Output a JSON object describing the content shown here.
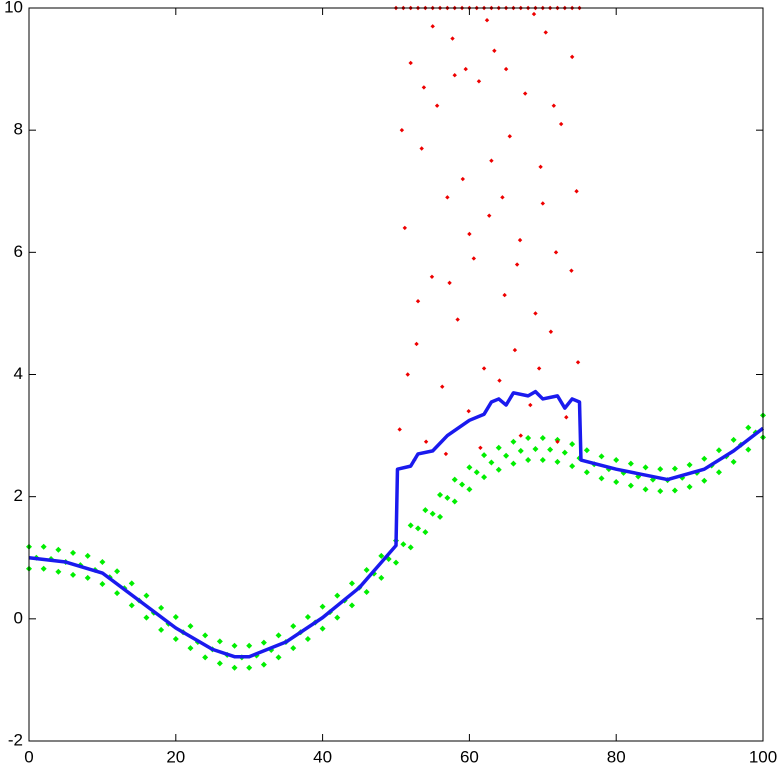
{
  "chart_data": {
    "type": "scatter",
    "xlim": [
      0,
      100
    ],
    "ylim": [
      -2,
      10
    ],
    "xticks": [
      0,
      20,
      40,
      60,
      80,
      100
    ],
    "yticks": [
      -2,
      0,
      2,
      4,
      6,
      8,
      10
    ],
    "grid": false,
    "series": [
      {
        "type": "scatter",
        "color": "#00ee00",
        "x": [
          0,
          0,
          2,
          2,
          4,
          4,
          6,
          6,
          8,
          8,
          10,
          10,
          12,
          12,
          14,
          14,
          16,
          16,
          18,
          18,
          20,
          20,
          22,
          22,
          24,
          24,
          26,
          26,
          28,
          28,
          30,
          30,
          32,
          32,
          34,
          34,
          36,
          36,
          38,
          38,
          40,
          40,
          42,
          42,
          44,
          44,
          46,
          46,
          48,
          48,
          50,
          50,
          52,
          52,
          54,
          54,
          56,
          56,
          58,
          58,
          60,
          60,
          62,
          62,
          64,
          64,
          66,
          66,
          68,
          68,
          70,
          70,
          72,
          72,
          74,
          74,
          76,
          76,
          78,
          78,
          80,
          80,
          82,
          82,
          84,
          84,
          86,
          86,
          88,
          88,
          90,
          90,
          92,
          92,
          94,
          94,
          96,
          96,
          98,
          98,
          100,
          100,
          1,
          3,
          5,
          7,
          9,
          11,
          13,
          15,
          17,
          19,
          21,
          23,
          25,
          27,
          29,
          31,
          33,
          35,
          37,
          39,
          41,
          43,
          45,
          47,
          49,
          51,
          53,
          55,
          57,
          59,
          61,
          63,
          65,
          67,
          69,
          71,
          73,
          75,
          77,
          79,
          81,
          83,
          85,
          87,
          89,
          91,
          93,
          95,
          97,
          99
        ],
        "values": [
          1.18,
          0.82,
          1.18,
          0.82,
          1.13,
          0.77,
          1.08,
          0.72,
          1.03,
          0.67,
          0.93,
          0.57,
          0.78,
          0.42,
          0.58,
          0.22,
          0.38,
          0.02,
          0.18,
          -0.18,
          0.03,
          -0.33,
          -0.12,
          -0.48,
          -0.27,
          -0.63,
          -0.37,
          -0.73,
          -0.44,
          -0.8,
          -0.44,
          -0.8,
          -0.39,
          -0.75,
          -0.27,
          -0.63,
          -0.12,
          -0.48,
          0.03,
          -0.33,
          0.2,
          -0.16,
          0.38,
          0.02,
          0.58,
          0.22,
          0.8,
          0.44,
          1.03,
          0.67,
          1.28,
          0.92,
          1.53,
          1.17,
          1.78,
          1.42,
          2.03,
          1.67,
          2.28,
          1.92,
          2.48,
          2.12,
          2.68,
          2.32,
          2.8,
          2.44,
          2.9,
          2.54,
          2.96,
          2.6,
          2.96,
          2.6,
          2.93,
          2.57,
          2.86,
          2.5,
          2.76,
          2.4,
          2.66,
          2.3,
          2.6,
          2.24,
          2.54,
          2.18,
          2.48,
          2.12,
          2.45,
          2.09,
          2.46,
          2.1,
          2.52,
          2.16,
          2.62,
          2.26,
          2.76,
          2.4,
          2.93,
          2.57,
          3.13,
          2.77,
          3.33,
          2.97,
          1.0,
          0.98,
          0.93,
          0.88,
          0.8,
          0.68,
          0.5,
          0.3,
          0.1,
          -0.08,
          -0.22,
          -0.38,
          -0.5,
          -0.59,
          -0.63,
          -0.6,
          -0.51,
          -0.38,
          -0.22,
          -0.06,
          0.11,
          0.3,
          0.51,
          0.74,
          0.98,
          1.22,
          1.48,
          1.72,
          1.98,
          2.2,
          2.4,
          2.56,
          2.67,
          2.75,
          2.78,
          2.77,
          2.72,
          2.63,
          2.53,
          2.45,
          2.39,
          2.33,
          2.28,
          2.27,
          2.31,
          2.39,
          2.51,
          2.66,
          2.85,
          3.05
        ]
      },
      {
        "type": "scatter",
        "color": "#ee0000",
        "x": [
          50.5,
          51.2,
          52.0,
          52.8,
          53.5,
          54.1,
          54.9,
          55.6,
          56.3,
          57.0,
          57.7,
          58.4,
          59.1,
          59.9,
          60.6,
          61.3,
          62.0,
          62.7,
          63.4,
          64.1,
          64.8,
          65.5,
          66.2,
          66.9,
          67.6,
          68.3,
          69.0,
          69.7,
          70.4,
          71.1,
          71.8,
          72.5,
          73.2,
          73.9,
          74.6,
          50.8,
          51.6,
          53.0,
          55.0,
          56.8,
          58.0,
          60.0,
          61.5,
          63.0,
          65.0,
          67.0,
          68.8,
          70.0,
          72.0,
          74.0,
          52.5,
          57.3,
          62.4,
          66.5,
          71.5,
          74.8,
          53.8,
          59.5,
          64.5,
          69.5,
          50,
          51,
          52,
          53,
          54,
          55,
          56,
          57,
          58,
          59,
          60,
          61,
          62,
          63,
          64,
          65,
          66,
          67,
          68,
          69,
          70,
          71,
          72,
          73,
          74,
          75
        ],
        "values": [
          3.1,
          6.4,
          9.1,
          4.5,
          7.7,
          2.9,
          5.6,
          8.4,
          3.8,
          6.9,
          9.5,
          4.9,
          7.2,
          3.4,
          5.9,
          8.8,
          4.1,
          6.6,
          9.3,
          3.9,
          5.3,
          7.9,
          4.4,
          6.2,
          8.6,
          3.5,
          5.0,
          7.4,
          9.6,
          4.7,
          6.0,
          8.1,
          3.3,
          5.7,
          7.0,
          8.0,
          4.0,
          5.2,
          9.7,
          2.7,
          8.9,
          6.3,
          2.8,
          7.5,
          9.0,
          3.0,
          9.9,
          6.8,
          2.9,
          9.2,
          2.6,
          5.5,
          9.8,
          5.8,
          8.4,
          4.2,
          8.7,
          9.0,
          6.9,
          4.1,
          10,
          10,
          10,
          10,
          10,
          10,
          10,
          10,
          10,
          10,
          10,
          10,
          10,
          10,
          10,
          10,
          10,
          10,
          10,
          10,
          10,
          10,
          10,
          10,
          10,
          10
        ]
      },
      {
        "type": "line",
        "color": "#1a1aee",
        "x": [
          0,
          5,
          10,
          15,
          20,
          25,
          28,
          30,
          35,
          40,
          45,
          50,
          50.2,
          52,
          53,
          55,
          57,
          60,
          62,
          63,
          64,
          65,
          66,
          68,
          69,
          70,
          72,
          73,
          74,
          75,
          75.2,
          80,
          87,
          92,
          96,
          100
        ],
        "values": [
          1.0,
          0.93,
          0.75,
          0.3,
          -0.15,
          -0.5,
          -0.62,
          -0.62,
          -0.38,
          0.02,
          0.51,
          1.2,
          2.45,
          2.5,
          2.7,
          2.75,
          3.0,
          3.25,
          3.35,
          3.55,
          3.6,
          3.5,
          3.7,
          3.65,
          3.72,
          3.6,
          3.65,
          3.45,
          3.6,
          3.55,
          2.6,
          2.45,
          2.28,
          2.45,
          2.75,
          3.12
        ]
      }
    ]
  }
}
